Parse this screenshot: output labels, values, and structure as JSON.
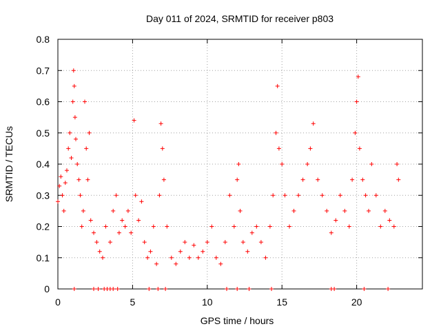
{
  "chart_data": {
    "type": "scatter",
    "title": "Day 011 of 2024, SRMTID for receiver p803",
    "xlabel": "GPS time / hours",
    "ylabel": "SRMTID / TECUs",
    "xlim": [
      0,
      24.4
    ],
    "ylim": [
      0,
      0.8
    ],
    "xticks": [
      0,
      5,
      10,
      15,
      20
    ],
    "xtick_labels": [
      "0",
      "5",
      "10",
      "15",
      "20"
    ],
    "yticks": [
      0,
      0.1,
      0.2,
      0.3,
      0.4,
      0.5,
      0.6,
      0.7,
      0.8
    ],
    "ytick_labels": [
      "0",
      "0.1",
      "0.2",
      "0.3",
      "0.4",
      "0.5",
      "0.6",
      "0.7",
      "0.8"
    ],
    "grid": true,
    "marker": "+",
    "color": "#ff0000",
    "series": [
      {
        "name": "SRMTID",
        "x": [
          0.0,
          0.1,
          0.2,
          0.3,
          0.4,
          0.5,
          0.6,
          0.7,
          0.8,
          0.9,
          1.0,
          1.05,
          1.1,
          1.15,
          1.2,
          1.3,
          1.4,
          1.5,
          1.6,
          1.7,
          1.8,
          1.9,
          2.0,
          2.1,
          2.2,
          2.4,
          2.6,
          2.8,
          3.0,
          3.2,
          3.5,
          3.7,
          3.9,
          4.1,
          4.3,
          4.5,
          4.7,
          4.9,
          5.1,
          5.2,
          5.4,
          5.6,
          5.8,
          6.0,
          6.2,
          6.4,
          6.6,
          6.8,
          6.9,
          7.0,
          7.1,
          7.3,
          7.6,
          7.9,
          8.2,
          8.5,
          8.8,
          9.1,
          9.4,
          9.7,
          10.0,
          10.3,
          10.6,
          10.9,
          11.2,
          11.5,
          11.8,
          12.0,
          12.1,
          12.2,
          12.4,
          12.7,
          13.0,
          13.3,
          13.6,
          13.9,
          14.2,
          14.4,
          14.6,
          14.7,
          14.8,
          15.0,
          15.2,
          15.5,
          15.8,
          16.1,
          16.4,
          16.7,
          16.9,
          17.1,
          17.4,
          17.7,
          18.0,
          18.3,
          18.6,
          18.9,
          19.2,
          19.5,
          19.7,
          19.9,
          20.0,
          20.1,
          20.2,
          20.4,
          20.6,
          20.8,
          21.0,
          21.3,
          21.6,
          21.9,
          22.2,
          22.5,
          22.7,
          22.8
        ],
        "y": [
          0.28,
          0.33,
          0.36,
          0.3,
          0.25,
          0.34,
          0.38,
          0.45,
          0.5,
          0.42,
          0.6,
          0.7,
          0.65,
          0.55,
          0.48,
          0.4,
          0.35,
          0.3,
          0.2,
          0.25,
          0.6,
          0.45,
          0.35,
          0.5,
          0.22,
          0.18,
          0.15,
          0.12,
          0.1,
          0.2,
          0.15,
          0.25,
          0.3,
          0.18,
          0.22,
          0.2,
          0.25,
          0.18,
          0.54,
          0.3,
          0.22,
          0.28,
          0.15,
          0.1,
          0.12,
          0.2,
          0.08,
          0.3,
          0.53,
          0.45,
          0.35,
          0.2,
          0.1,
          0.08,
          0.12,
          0.15,
          0.1,
          0.14,
          0.1,
          0.12,
          0.15,
          0.2,
          0.1,
          0.08,
          0.15,
          0.3,
          0.2,
          0.35,
          0.4,
          0.25,
          0.15,
          0.12,
          0.18,
          0.2,
          0.15,
          0.1,
          0.2,
          0.3,
          0.5,
          0.65,
          0.45,
          0.4,
          0.3,
          0.2,
          0.25,
          0.3,
          0.35,
          0.4,
          0.45,
          0.53,
          0.35,
          0.3,
          0.25,
          0.18,
          0.22,
          0.3,
          0.25,
          0.2,
          0.35,
          0.5,
          0.6,
          0.68,
          0.45,
          0.35,
          0.3,
          0.25,
          0.4,
          0.3,
          0.2,
          0.25,
          0.22,
          0.2,
          0.4,
          0.35
        ]
      }
    ],
    "zero_values_x": [
      1.1,
      2.4,
      2.7,
      3.1,
      3.3,
      3.5,
      3.7,
      4.0,
      6.1,
      6.7,
      7.2,
      11.3,
      12.0,
      12.8,
      14.3,
      18.3,
      18.5,
      20.5,
      22.1
    ]
  }
}
